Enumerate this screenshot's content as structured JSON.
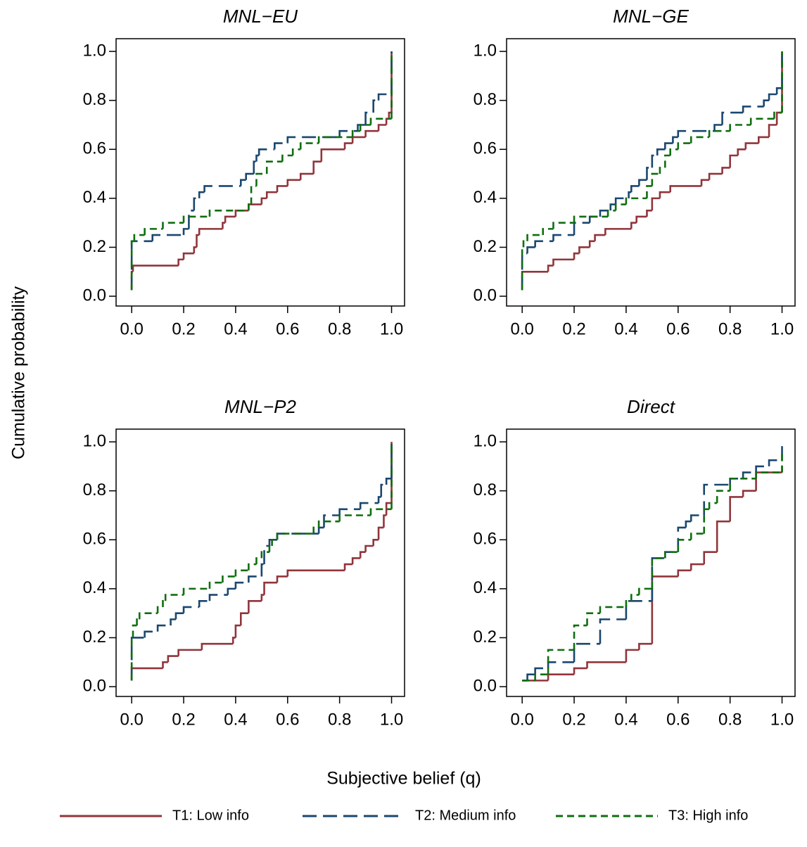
{
  "ylabel": "Cumulative probability",
  "xlabel": "Subjective belief (q)",
  "chart_data": [
    {
      "type": "line",
      "step": "post",
      "title": "MNL−EU",
      "xlim": [
        -0.06,
        1.05
      ],
      "ylim": [
        -0.04,
        1.052
      ],
      "xticks": [
        {
          "value": 0,
          "label": "0.0"
        },
        0.2,
        0.4,
        0.6,
        0.8,
        {
          "value": 1,
          "label": "1.0"
        }
      ],
      "yticks": [
        {
          "value": 0,
          "label": "0.0"
        },
        0.2,
        0.4,
        0.6,
        0.8,
        {
          "value": 1,
          "label": "1.0"
        }
      ],
      "series": [
        {
          "name": "T1: Low info",
          "color": "#90353b",
          "dash": "solid",
          "x": [
            0,
            0,
            0.005,
            0.18,
            0.2,
            0.24,
            0.25,
            0.26,
            0.35,
            0.36,
            0.4,
            0.45,
            0.5,
            0.52,
            0.56,
            0.6,
            0.65,
            0.7,
            0.73,
            0.82,
            0.85,
            0.9,
            0.95,
            0.98,
            0.99,
            1
          ],
          "values": [
            0.025,
            0.1,
            0.125,
            0.15,
            0.175,
            0.2,
            0.25,
            0.275,
            0.3,
            0.325,
            0.35,
            0.375,
            0.4,
            0.425,
            0.45,
            0.475,
            0.5,
            0.55,
            0.6,
            0.625,
            0.65,
            0.675,
            0.7,
            0.725,
            0.75,
            1
          ]
        },
        {
          "name": "T2: Medium info",
          "color": "#1a476f",
          "dash": "long",
          "x": [
            0,
            0,
            0.08,
            0.2,
            0.22,
            0.24,
            0.26,
            0.28,
            0.42,
            0.44,
            0.47,
            0.48,
            0.49,
            0.55,
            0.6,
            0.8,
            0.87,
            0.9,
            0.93,
            0.95,
            1
          ],
          "values": [
            0.025,
            0.225,
            0.25,
            0.275,
            0.35,
            0.4,
            0.425,
            0.45,
            0.475,
            0.5,
            0.55,
            0.575,
            0.6,
            0.625,
            0.65,
            0.675,
            0.7,
            0.75,
            0.8,
            0.825,
            1
          ]
        },
        {
          "name": "T3: High info",
          "color": "#0f6e0f",
          "dash": "short",
          "x": [
            0,
            0,
            0.01,
            0.05,
            0.12,
            0.2,
            0.3,
            0.45,
            0.46,
            0.48,
            0.52,
            0.58,
            0.62,
            0.65,
            0.72,
            0.85,
            0.88,
            0.92,
            1
          ],
          "values": [
            0.025,
            0.225,
            0.25,
            0.275,
            0.3,
            0.325,
            0.35,
            0.375,
            0.45,
            0.5,
            0.55,
            0.575,
            0.6,
            0.625,
            0.65,
            0.675,
            0.7,
            0.725,
            1
          ]
        }
      ]
    },
    {
      "type": "line",
      "step": "post",
      "title": "MNL−GE",
      "xlim": [
        -0.06,
        1.05
      ],
      "ylim": [
        -0.04,
        1.052
      ],
      "xticks": [
        {
          "value": 0,
          "label": "0.0"
        },
        0.2,
        0.4,
        0.6,
        0.8,
        {
          "value": 1,
          "label": "1.0"
        }
      ],
      "yticks": [
        {
          "value": 0,
          "label": "0.0"
        },
        0.2,
        0.4,
        0.6,
        0.8,
        {
          "value": 1,
          "label": "1.0"
        }
      ],
      "series": [
        {
          "name": "T1: Low info",
          "color": "#90353b",
          "dash": "solid",
          "x": [
            0,
            0,
            0.1,
            0.12,
            0.2,
            0.22,
            0.26,
            0.28,
            0.32,
            0.42,
            0.44,
            0.48,
            0.5,
            0.53,
            0.57,
            0.69,
            0.72,
            0.77,
            0.8,
            0.83,
            0.86,
            0.91,
            0.95,
            0.98,
            1
          ],
          "values": [
            0.025,
            0.1,
            0.125,
            0.15,
            0.175,
            0.2,
            0.225,
            0.25,
            0.275,
            0.3,
            0.325,
            0.35,
            0.4,
            0.425,
            0.45,
            0.475,
            0.5,
            0.525,
            0.575,
            0.6,
            0.625,
            0.65,
            0.7,
            0.75,
            1
          ]
        },
        {
          "name": "T2: Medium info",
          "color": "#1a476f",
          "dash": "long",
          "x": [
            0,
            0,
            0.02,
            0.05,
            0.12,
            0.2,
            0.26,
            0.3,
            0.34,
            0.36,
            0.41,
            0.42,
            0.45,
            0.48,
            0.5,
            0.52,
            0.55,
            0.58,
            0.6,
            0.74,
            0.77,
            0.85,
            0.93,
            0.95,
            0.98,
            1
          ],
          "values": [
            0.025,
            0.175,
            0.2,
            0.225,
            0.25,
            0.3,
            0.325,
            0.35,
            0.375,
            0.4,
            0.425,
            0.45,
            0.475,
            0.525,
            0.575,
            0.6,
            0.625,
            0.65,
            0.675,
            0.7,
            0.75,
            0.775,
            0.8,
            0.825,
            0.85,
            1
          ]
        },
        {
          "name": "T3: High info",
          "color": "#0f6e0f",
          "dash": "short",
          "x": [
            0,
            0,
            0.005,
            0.02,
            0.08,
            0.12,
            0.2,
            0.33,
            0.36,
            0.4,
            0.48,
            0.5,
            0.53,
            0.55,
            0.57,
            0.6,
            0.65,
            0.72,
            0.8,
            0.88,
            0.97,
            1
          ],
          "values": [
            0.025,
            0.2,
            0.225,
            0.25,
            0.275,
            0.3,
            0.325,
            0.35,
            0.375,
            0.4,
            0.45,
            0.5,
            0.525,
            0.575,
            0.6,
            0.625,
            0.65,
            0.675,
            0.7,
            0.725,
            0.75,
            1
          ]
        }
      ]
    },
    {
      "type": "line",
      "step": "post",
      "title": "MNL−P2",
      "xlim": [
        -0.06,
        1.05
      ],
      "ylim": [
        -0.04,
        1.052
      ],
      "xticks": [
        {
          "value": 0,
          "label": "0.0"
        },
        0.2,
        0.4,
        0.6,
        0.8,
        {
          "value": 1,
          "label": "1.0"
        }
      ],
      "yticks": [
        {
          "value": 0,
          "label": "0.0"
        },
        0.2,
        0.4,
        0.6,
        0.8,
        {
          "value": 1,
          "label": "1.0"
        }
      ],
      "series": [
        {
          "name": "T1: Low info",
          "color": "#90353b",
          "dash": "solid",
          "x": [
            0,
            0,
            0.12,
            0.14,
            0.18,
            0.27,
            0.39,
            0.4,
            0.42,
            0.45,
            0.5,
            0.51,
            0.56,
            0.6,
            0.82,
            0.85,
            0.88,
            0.9,
            0.93,
            0.95,
            0.97,
            0.98,
            1
          ],
          "values": [
            0.025,
            0.075,
            0.1,
            0.125,
            0.15,
            0.175,
            0.2,
            0.25,
            0.3,
            0.35,
            0.375,
            0.425,
            0.45,
            0.475,
            0.5,
            0.525,
            0.55,
            0.575,
            0.6,
            0.65,
            0.7,
            0.75,
            1
          ]
        },
        {
          "name": "T2: Medium info",
          "color": "#1a476f",
          "dash": "long",
          "x": [
            0,
            0,
            0.05,
            0.1,
            0.15,
            0.17,
            0.2,
            0.26,
            0.3,
            0.37,
            0.4,
            0.45,
            0.5,
            0.51,
            0.53,
            0.56,
            0.72,
            0.74,
            0.8,
            0.88,
            0.95,
            0.96,
            0.98,
            1
          ],
          "values": [
            0.025,
            0.2,
            0.225,
            0.25,
            0.275,
            0.3,
            0.325,
            0.35,
            0.375,
            0.4,
            0.425,
            0.45,
            0.5,
            0.575,
            0.6,
            0.625,
            0.65,
            0.7,
            0.725,
            0.75,
            0.775,
            0.825,
            0.85,
            1
          ]
        },
        {
          "name": "T3: High info",
          "color": "#0f6e0f",
          "dash": "short",
          "x": [
            0,
            0,
            0.005,
            0.02,
            0.03,
            0.1,
            0.12,
            0.13,
            0.2,
            0.3,
            0.35,
            0.4,
            0.45,
            0.48,
            0.5,
            0.53,
            0.54,
            0.56,
            0.7,
            0.72,
            0.8,
            0.92,
            1
          ],
          "values": [
            0.025,
            0.2,
            0.25,
            0.275,
            0.3,
            0.325,
            0.35,
            0.375,
            0.4,
            0.425,
            0.45,
            0.475,
            0.5,
            0.525,
            0.55,
            0.575,
            0.6,
            0.625,
            0.65,
            0.675,
            0.7,
            0.725,
            1
          ]
        }
      ]
    },
    {
      "type": "line",
      "step": "post",
      "title": "Direct",
      "xlim": [
        -0.06,
        1.05
      ],
      "ylim": [
        -0.04,
        1.052
      ],
      "xticks": [
        {
          "value": 0,
          "label": "0.0"
        },
        0.2,
        0.4,
        0.6,
        0.8,
        {
          "value": 1,
          "label": "1.0"
        }
      ],
      "yticks": [
        {
          "value": 0,
          "label": "0.0"
        },
        0.2,
        0.4,
        0.6,
        0.8,
        {
          "value": 1,
          "label": "1.0"
        }
      ],
      "series": [
        {
          "name": "T1: Low info",
          "color": "#90353b",
          "dash": "solid",
          "x": [
            0,
            0.1,
            0.2,
            0.25,
            0.4,
            0.45,
            0.5,
            0.6,
            0.65,
            0.7,
            0.75,
            0.8,
            0.85,
            0.9,
            1
          ],
          "values": [
            0.025,
            0.05,
            0.075,
            0.1,
            0.15,
            0.175,
            0.45,
            0.475,
            0.5,
            0.55,
            0.675,
            0.775,
            0.8,
            0.875,
            0.9
          ]
        },
        {
          "name": "T2: Medium info",
          "color": "#1a476f",
          "dash": "long",
          "x": [
            0,
            0.02,
            0.05,
            0.1,
            0.2,
            0.3,
            0.4,
            0.5,
            0.55,
            0.6,
            0.63,
            0.65,
            0.7,
            0.8,
            0.85,
            0.9,
            0.95,
            1
          ],
          "values": [
            0.025,
            0.05,
            0.075,
            0.1,
            0.175,
            0.275,
            0.35,
            0.525,
            0.55,
            0.65,
            0.675,
            0.7,
            0.825,
            0.85,
            0.875,
            0.9,
            0.925,
            1
          ]
        },
        {
          "name": "T3: High info",
          "color": "#0f6e0f",
          "dash": "short",
          "x": [
            0,
            0.05,
            0.1,
            0.2,
            0.25,
            0.3,
            0.4,
            0.42,
            0.45,
            0.5,
            0.55,
            0.6,
            0.65,
            0.7,
            0.72,
            0.75,
            0.8,
            0.9,
            1
          ],
          "values": [
            0.025,
            0.05,
            0.15,
            0.25,
            0.3,
            0.325,
            0.35,
            0.375,
            0.4,
            0.525,
            0.55,
            0.6,
            0.625,
            0.725,
            0.75,
            0.8,
            0.85,
            0.875,
            0.95
          ]
        }
      ]
    }
  ]
}
